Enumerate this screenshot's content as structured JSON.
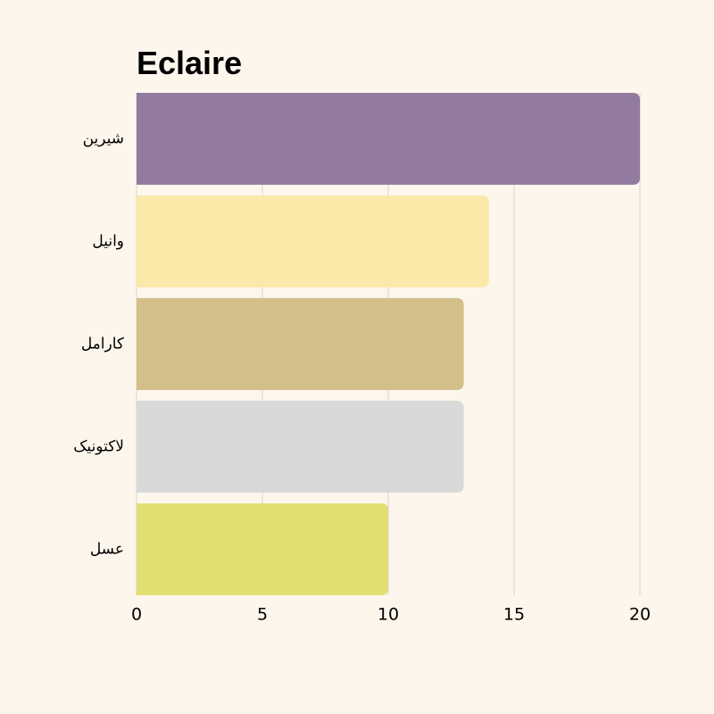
{
  "chart_data": {
    "type": "bar",
    "orientation": "horizontal",
    "title": "Eclaire",
    "categories": [
      "شيرين",
      "وانيل",
      "کارامل",
      "لاکتونيک",
      "عسل"
    ],
    "values": [
      20,
      14,
      13,
      13,
      10
    ],
    "colors": [
      "#927b9e",
      "#fbe9a9",
      "#d2bf8a",
      "#d9d9d9",
      "#e2df72"
    ],
    "xlim": [
      0,
      20
    ],
    "xticks": [
      0,
      5,
      10,
      15,
      20
    ],
    "grid": true
  }
}
